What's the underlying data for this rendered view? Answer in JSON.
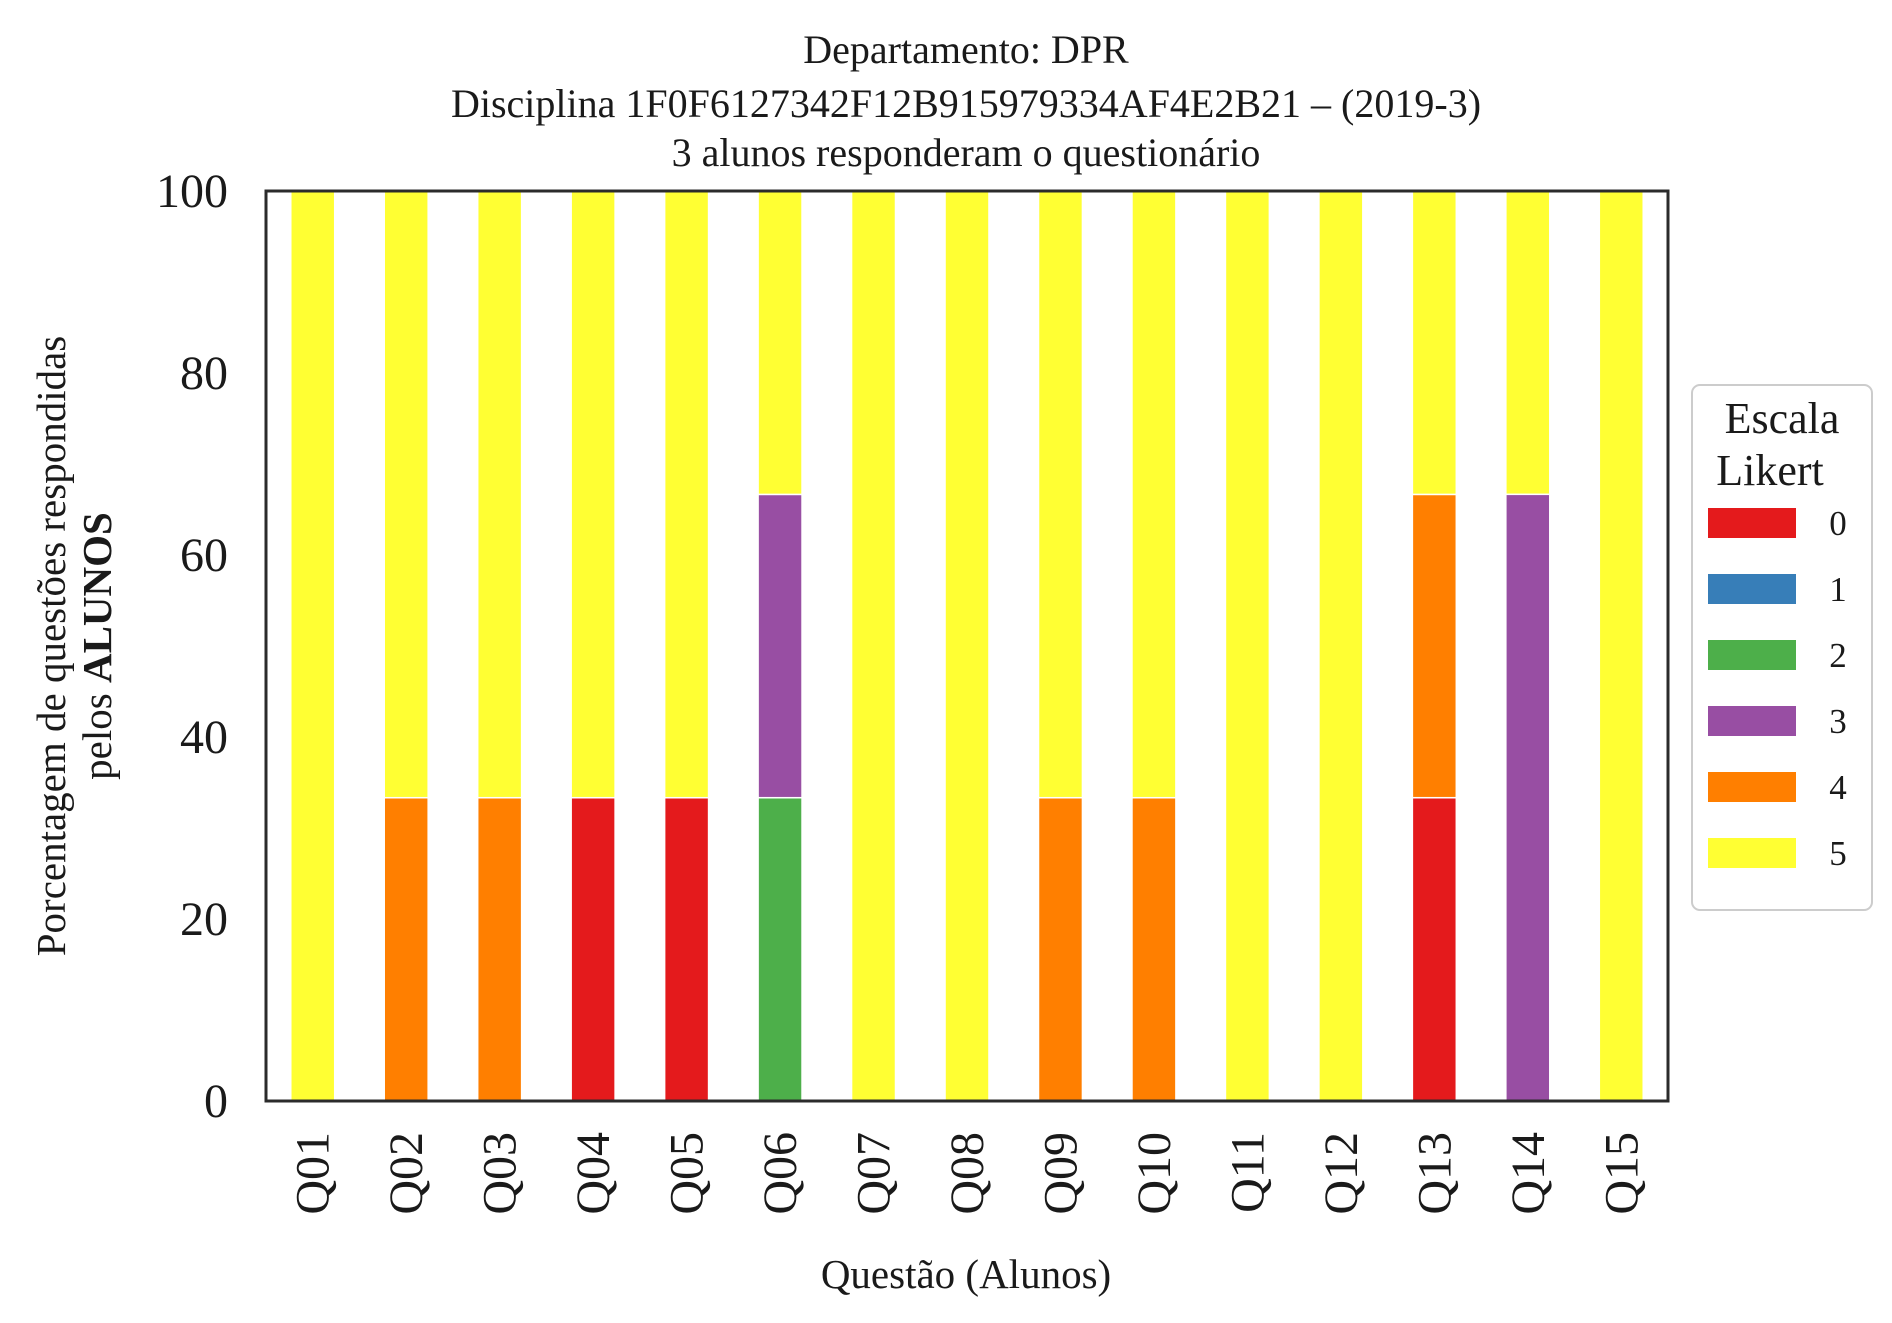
{
  "chart_data": {
    "type": "bar",
    "stacked": true,
    "title": [
      "Departamento: DPR",
      "Disciplina 1F0F6127342F12B915979334AF4E2B21 – (2019-3)",
      "3 alunos responderam o questionário"
    ],
    "xlabel": "Questão (Alunos)",
    "ylabel_line1": "Porcentagem de questões respondidas",
    "ylabel_line2_prefix": "pelos ",
    "ylabel_line2_bold": "ALUNOS",
    "ylim": [
      0,
      100
    ],
    "yticks": [
      "0",
      "20",
      "40",
      "60",
      "80",
      "100"
    ],
    "grid": false,
    "legend_placement": "right",
    "legend_title": [
      "Escala",
      "Likert"
    ],
    "categories": [
      "Q01",
      "Q02",
      "Q03",
      "Q04",
      "Q05",
      "Q06",
      "Q07",
      "Q08",
      "Q09",
      "Q10",
      "Q11",
      "Q12",
      "Q13",
      "Q14",
      "Q15"
    ],
    "series": [
      {
        "name": "0",
        "color": "#e41a1c",
        "values": [
          0,
          0,
          0,
          33.33,
          33.33,
          0,
          0,
          0,
          0,
          0,
          0,
          0,
          33.33,
          0,
          0
        ]
      },
      {
        "name": "1",
        "color": "#377eb8",
        "values": [
          0,
          0,
          0,
          0,
          0,
          0,
          0,
          0,
          0,
          0,
          0,
          0,
          0,
          0,
          0
        ]
      },
      {
        "name": "2",
        "color": "#4daf4a",
        "values": [
          0,
          0,
          0,
          0,
          0,
          33.33,
          0,
          0,
          0,
          0,
          0,
          0,
          0,
          0,
          0
        ]
      },
      {
        "name": "3",
        "color": "#984ea3",
        "values": [
          0,
          0,
          0,
          0,
          0,
          33.33,
          0,
          0,
          0,
          0,
          0,
          0,
          0,
          66.67,
          0
        ]
      },
      {
        "name": "4",
        "color": "#ff7f00",
        "values": [
          0,
          33.33,
          33.33,
          0,
          0,
          0,
          0,
          0,
          33.33,
          33.33,
          0,
          0,
          33.33,
          0,
          0
        ]
      },
      {
        "name": "5",
        "color": "#ffff33",
        "values": [
          100,
          66.67,
          66.67,
          66.67,
          66.67,
          33.33,
          100,
          100,
          66.67,
          66.67,
          100,
          100,
          33.33,
          33.33,
          100
        ]
      }
    ]
  }
}
